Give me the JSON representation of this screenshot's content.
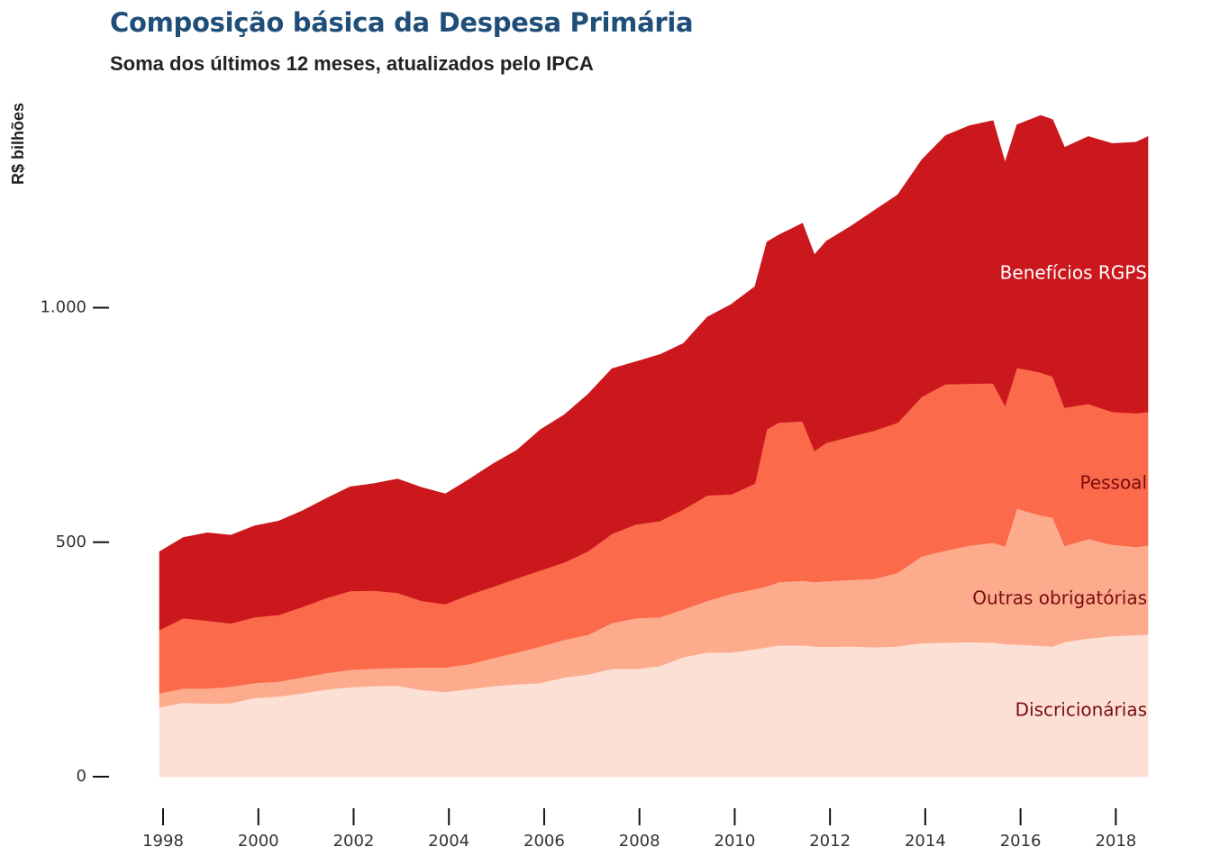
{
  "title": "Composição básica da Despesa Primária",
  "subtitle": "Soma dos últimos 12 meses, atualizados pelo IPCA",
  "chart_data": {
    "type": "area",
    "stacked": true,
    "ylabel": "R$ bilhões",
    "xlabel": "",
    "ylim": [
      0,
      1400
    ],
    "xlim": [
      1998.0,
      2018.75
    ],
    "y_ticks": [
      0,
      500,
      1000
    ],
    "y_tick_labels": [
      "0",
      "500",
      "1.000"
    ],
    "x_ticks": [
      1998,
      2000,
      2002,
      2004,
      2006,
      2008,
      2010,
      2012,
      2014,
      2016,
      2018
    ],
    "x_tick_labels": [
      "1998",
      "2000",
      "2002",
      "2004",
      "2006",
      "2008",
      "2010",
      "2012",
      "2014",
      "2016",
      "2018"
    ],
    "grid": false,
    "legend": "direct labels on right",
    "x": [
      1998.0,
      1998.5,
      1999.0,
      1999.5,
      2000.0,
      2000.5,
      2001.0,
      2001.5,
      2002.0,
      2002.5,
      2003.0,
      2003.5,
      2004.0,
      2004.5,
      2005.0,
      2005.5,
      2006.0,
      2006.5,
      2007.0,
      2007.5,
      2008.0,
      2008.5,
      2009.0,
      2009.5,
      2010.0,
      2010.5,
      2010.75,
      2011.0,
      2011.5,
      2011.75,
      2012.0,
      2012.5,
      2013.0,
      2013.5,
      2014.0,
      2014.5,
      2015.0,
      2015.5,
      2015.75,
      2016.0,
      2016.5,
      2016.75,
      2017.0,
      2017.5,
      2018.0,
      2018.5,
      2018.75
    ],
    "series": [
      {
        "name": "Discricionárias",
        "color": "#fde0d5",
        "label_color": "#7a0c10",
        "values": [
          148,
          158,
          156,
          157,
          168,
          171,
          178,
          186,
          191,
          193,
          194,
          185,
          181,
          187,
          193,
          197,
          200,
          212,
          218,
          230,
          230,
          236,
          255,
          265,
          265,
          272,
          276,
          280,
          280,
          278,
          277,
          278,
          276,
          278,
          285,
          286,
          287,
          286,
          283,
          282,
          279,
          278,
          287,
          295,
          300,
          302,
          303
        ]
      },
      {
        "name": "Outras obrigatórias",
        "color": "#fcab8d",
        "label_color": "#7a0c10",
        "values": [
          30,
          30,
          32,
          35,
          32,
          32,
          34,
          35,
          37,
          38,
          38,
          48,
          52,
          53,
          60,
          68,
          78,
          80,
          85,
          98,
          108,
          104,
          102,
          110,
          125,
          128,
          130,
          135,
          138,
          137,
          140,
          142,
          146,
          157,
          185,
          196,
          206,
          213,
          208,
          290,
          278,
          275,
          205,
          212,
          195,
          188,
          190
        ]
      },
      {
        "name": "Pessoal",
        "color": "#fb6a4a",
        "label_color": "#7a0c10",
        "values": [
          135,
          150,
          145,
          135,
          140,
          142,
          150,
          160,
          168,
          166,
          160,
          142,
          135,
          148,
          152,
          158,
          162,
          165,
          178,
          190,
          200,
          205,
          213,
          225,
          212,
          225,
          335,
          340,
          340,
          280,
          295,
          305,
          316,
          320,
          340,
          355,
          345,
          340,
          300,
          300,
          305,
          300,
          295,
          288,
          283,
          285,
          285
        ]
      },
      {
        "name": "Benefícios RGPS",
        "color": "#cb181d",
        "label_color": "#ffffff",
        "values": [
          167,
          172,
          187,
          188,
          195,
          200,
          205,
          212,
          222,
          228,
          243,
          242,
          235,
          246,
          262,
          273,
          300,
          315,
          335,
          352,
          347,
          355,
          354,
          380,
          405,
          420,
          399,
          400,
          422,
          418,
          430,
          448,
          469,
          486,
          505,
          530,
          550,
          560,
          519,
          518,
          548,
          548,
          555,
          570,
          572,
          578,
          587
        ]
      }
    ]
  }
}
